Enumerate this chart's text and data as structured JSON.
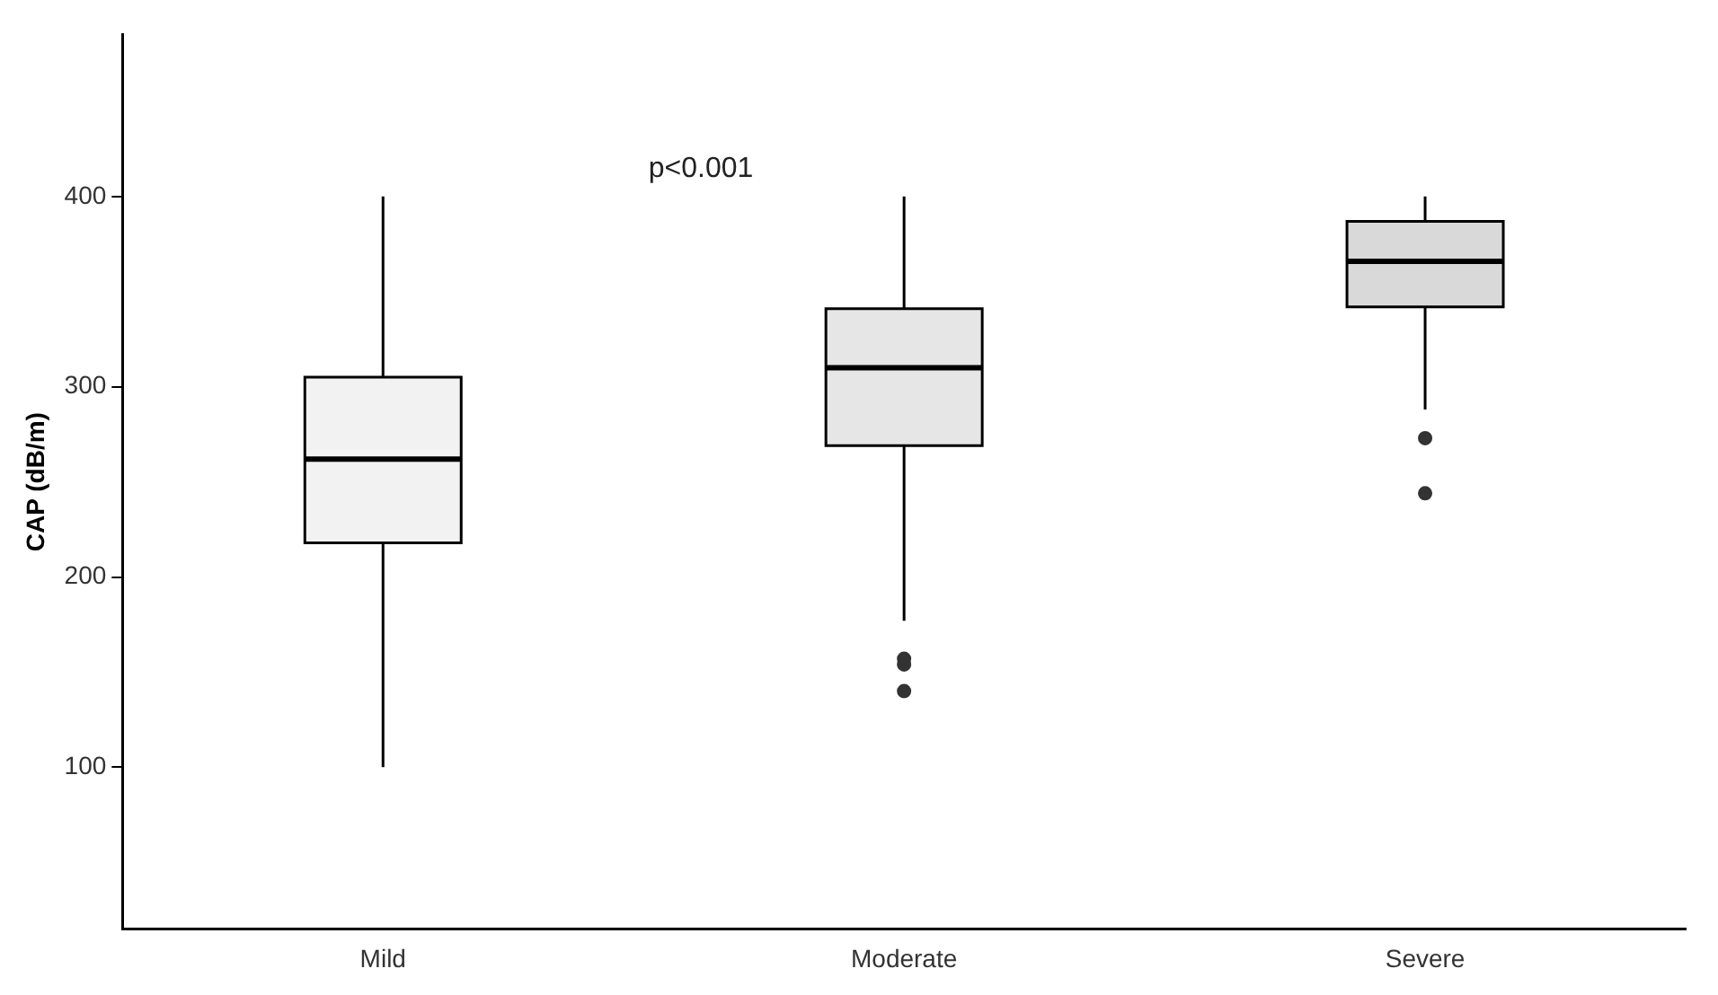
{
  "chart_data": {
    "type": "box",
    "ylabel": "CAP (dB/m)",
    "categories": [
      "Mild",
      "Moderate",
      "Severe"
    ],
    "colors": [
      "#f2f2f2",
      "#e6e6e6",
      "#d9d9d9"
    ],
    "boxes": [
      {
        "low": 100,
        "q1": 218,
        "median": 262,
        "q3": 305,
        "high": 400
      },
      {
        "low": 177,
        "q1": 269,
        "median": 310,
        "q3": 341,
        "high": 400,
        "outliers": [
          157,
          154,
          140
        ]
      },
      {
        "low": 288,
        "q1": 342,
        "median": 366,
        "q3": 387,
        "high": 400,
        "outliers": [
          273,
          244
        ]
      }
    ],
    "ylim": [
      15,
      485
    ],
    "yticks": [
      100,
      200,
      300,
      400
    ],
    "grid": false,
    "annotations": [
      "p<0.001"
    ]
  }
}
